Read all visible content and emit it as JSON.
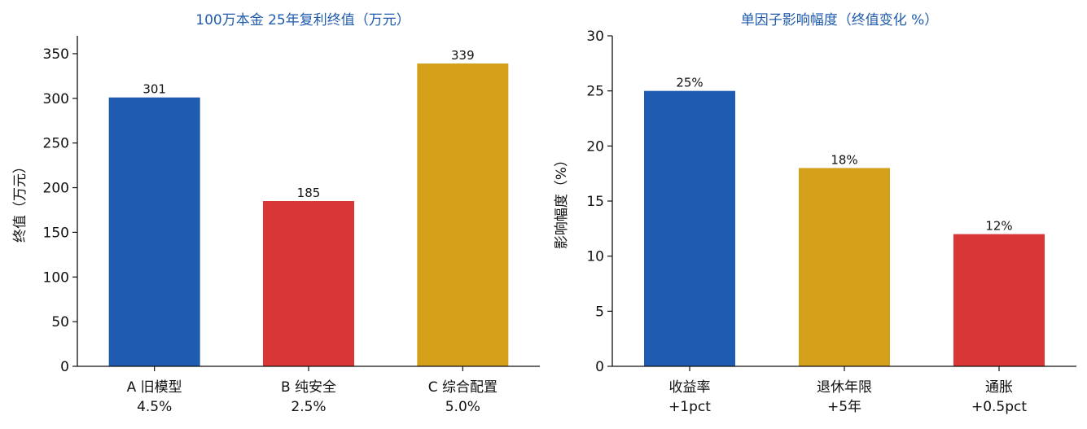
{
  "chart_data": [
    {
      "type": "bar",
      "title": "100万本金 25年复利终值（万元）",
      "xlabel": "",
      "ylabel": "终值（万元）",
      "ylim": [
        0,
        370
      ],
      "yticks": [
        0,
        50,
        100,
        150,
        200,
        250,
        300,
        350
      ],
      "categories": [
        [
          "A 旧模型",
          "4.5%"
        ],
        [
          "B 纯安全",
          "2.5%"
        ],
        [
          "C 综合配置",
          "5.0%"
        ]
      ],
      "values": [
        301,
        185,
        339
      ],
      "data_labels": [
        "301",
        "185",
        "339"
      ],
      "colors": [
        "#1f5bb0",
        "#d93636",
        "#d4a01a"
      ],
      "grid": false,
      "legend": "none"
    },
    {
      "type": "bar",
      "title": "单因子影响幅度（终值变化 %）",
      "xlabel": "",
      "ylabel": "影响幅度（%）",
      "ylim": [
        0,
        30
      ],
      "yticks": [
        0,
        5,
        10,
        15,
        20,
        25,
        30
      ],
      "categories": [
        [
          "收益率",
          "+1pct"
        ],
        [
          "退休年限",
          "+5年"
        ],
        [
          "通胀",
          "+0.5pct"
        ]
      ],
      "values": [
        25,
        18,
        12
      ],
      "data_labels": [
        "25%",
        "18%",
        "12%"
      ],
      "colors": [
        "#1f5bb0",
        "#d4a01a",
        "#d93636"
      ],
      "grid": false,
      "legend": "none"
    }
  ]
}
